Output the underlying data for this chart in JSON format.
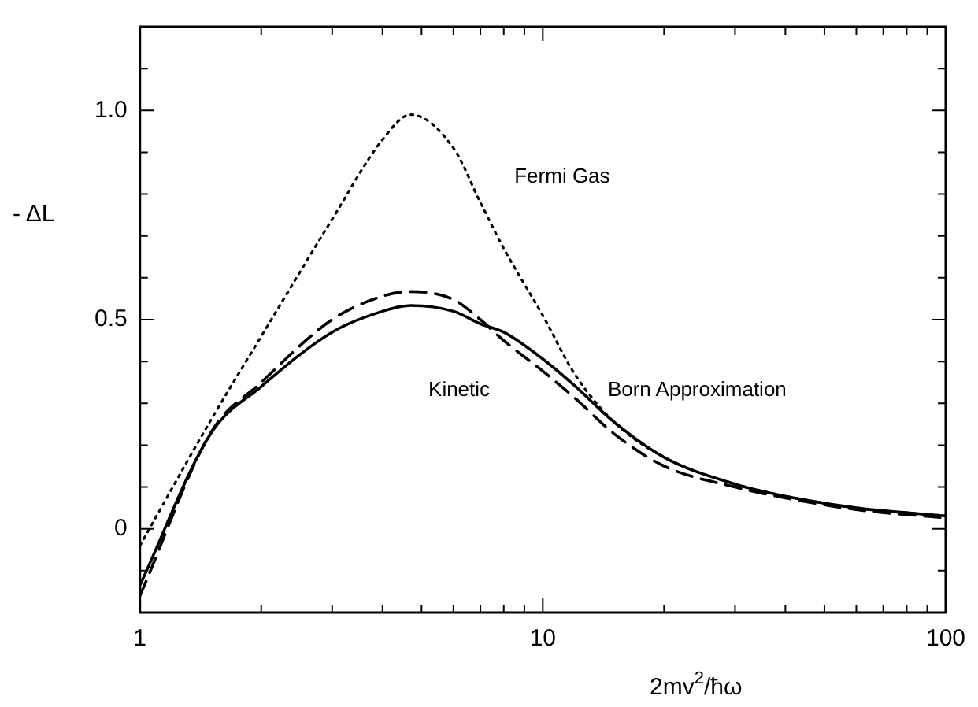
{
  "chart_data": {
    "type": "line",
    "xlabel": "2mv$^{2}$/ħω",
    "ylabel": "- ΔL",
    "log": "x",
    "grid": false,
    "legend": false,
    "marker": "none",
    "x": [
      1,
      1.5,
      2,
      3,
      4,
      4.7,
      6,
      7,
      8,
      10,
      12,
      15,
      20,
      30,
      40,
      60,
      100
    ],
    "xlim": [
      1,
      100
    ],
    "xticks": [
      1,
      {
        "value": 2,
        "label": null
      },
      {
        "value": 3,
        "label": null
      },
      {
        "value": 4,
        "label": null
      },
      {
        "value": 5,
        "label": null
      },
      {
        "value": 6,
        "label": null
      },
      {
        "value": 7,
        "label": null
      },
      {
        "value": 8,
        "label": null
      },
      {
        "value": 9,
        "label": null
      },
      10,
      {
        "value": 20,
        "label": null
      },
      {
        "value": 30,
        "label": null
      },
      {
        "value": 40,
        "label": null
      },
      {
        "value": 50,
        "label": null
      },
      {
        "value": 60,
        "label": null
      },
      {
        "value": 70,
        "label": null
      },
      {
        "value": 80,
        "label": null
      },
      {
        "value": 90,
        "label": null
      },
      100
    ],
    "ylim": [
      -0.2,
      1.2
    ],
    "yticks": [
      {
        "value": -0.1,
        "label": null
      },
      0,
      {
        "value": 0.1,
        "label": null
      },
      {
        "value": 0.2,
        "label": null
      },
      {
        "value": 0.3,
        "label": null
      },
      {
        "value": 0.4,
        "label": null
      },
      0.5,
      {
        "value": 0.6,
        "label": null
      },
      {
        "value": 0.7,
        "label": null
      },
      {
        "value": 0.8,
        "label": null
      },
      {
        "value": 0.9,
        "label": null
      },
      {
        "value": 1,
        "label": "1.0"
      },
      {
        "value": 1.1,
        "label": null
      }
    ],
    "series": [
      {
        "name": "Fermi Gas",
        "color": "#000000",
        "line_style": "dotted",
        "values": [
          -0.04,
          0.26,
          0.46,
          0.74,
          0.93,
          0.99,
          0.91,
          0.78,
          0.67,
          0.51,
          0.37,
          0.256,
          0.171,
          0.107,
          0.078,
          0.05,
          0.031
        ]
      },
      {
        "name": "Born Approximation",
        "color": "#000000",
        "line_style": "solid",
        "values": [
          -0.135,
          0.228,
          0.34,
          0.47,
          0.52,
          0.534,
          0.52,
          0.49,
          0.47,
          0.406,
          0.342,
          0.256,
          0.171,
          0.107,
          0.078,
          0.05,
          0.031
        ]
      },
      {
        "name": "Kinetic",
        "color": "#000000",
        "line_style": "dashed",
        "values": [
          -0.16,
          0.23,
          0.35,
          0.5,
          0.556,
          0.567,
          0.548,
          0.5,
          0.45,
          0.377,
          0.313,
          0.228,
          0.15,
          0.1,
          0.074,
          0.046,
          0.026
        ]
      }
    ]
  }
}
